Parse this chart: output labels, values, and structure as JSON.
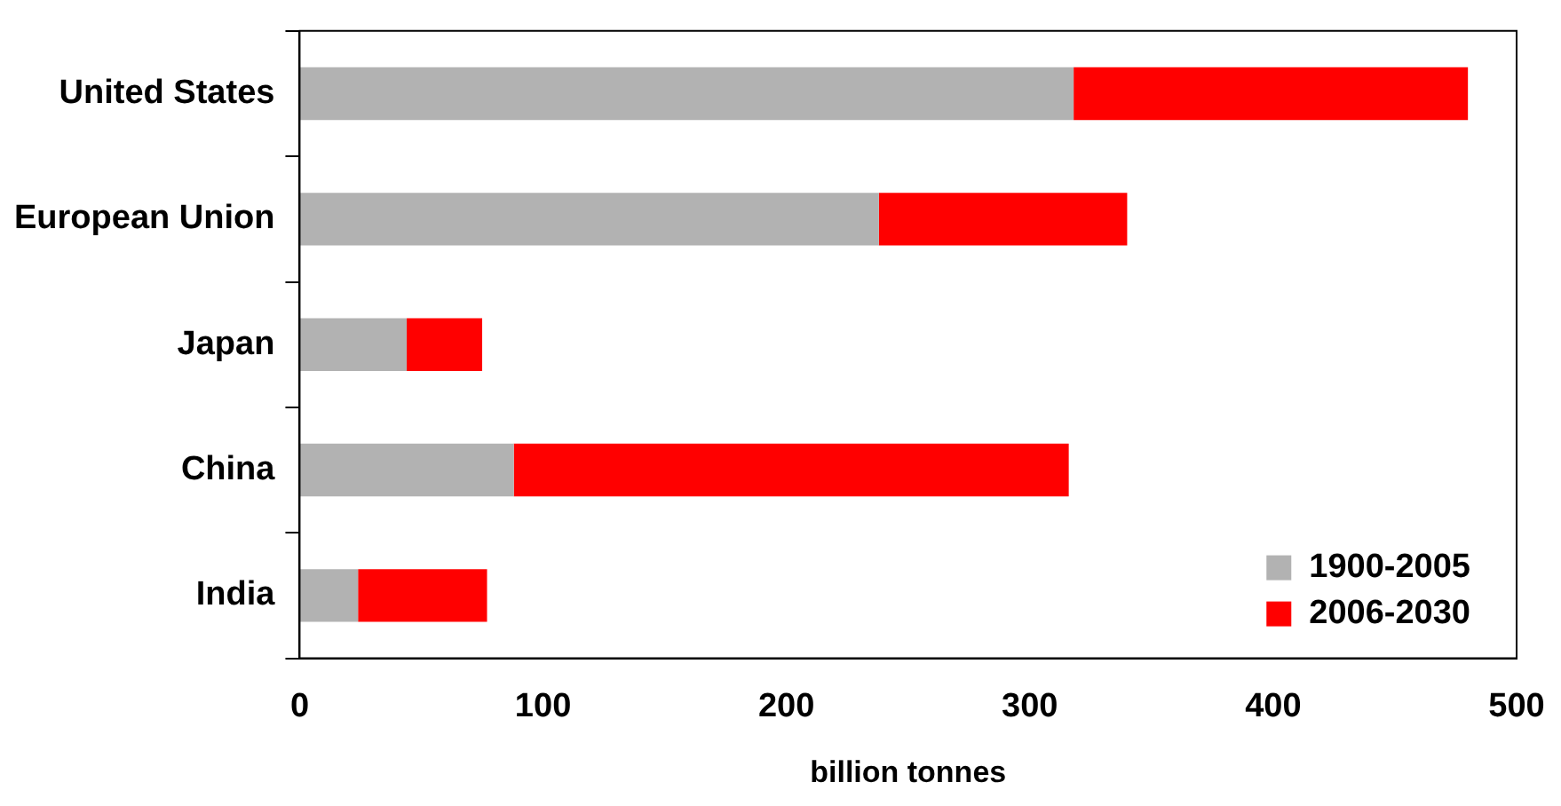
{
  "chart_data": {
    "type": "bar",
    "orientation": "horizontal",
    "stacked": true,
    "xlabel": "billion tonnes",
    "categories": [
      "United States",
      "European Union",
      "Japan",
      "China",
      "India"
    ],
    "series": [
      {
        "name": "1900-2005",
        "color": "#b2b2b2",
        "values": [
          318,
          238,
          44,
          88,
          24
        ]
      },
      {
        "name": "2006-2030",
        "color": "#ff0000",
        "values": [
          162,
          102,
          31,
          228,
          53
        ]
      }
    ],
    "xlim": [
      0,
      500
    ],
    "xticks": [
      0,
      100,
      200,
      300,
      400,
      500
    ],
    "grid": false,
    "legend": "bottom right"
  }
}
